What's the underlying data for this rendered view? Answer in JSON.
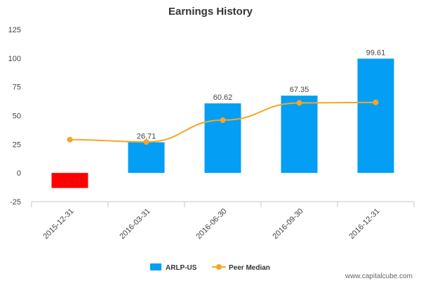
{
  "chart_data": {
    "type": "bar",
    "title": "Earnings History",
    "categories": [
      "2015-12-31",
      "2016-03-31",
      "2016-06-30",
      "2016-09-30",
      "2016-12-31"
    ],
    "series": [
      {
        "name": "ARLP-US",
        "kind": "bar",
        "values": [
          -13.13,
          26.71,
          60.62,
          67.35,
          99.61
        ],
        "labels": [
          "-13.13",
          "26.71",
          "60.62",
          "67.35",
          "99.61"
        ]
      },
      {
        "name": "Peer Median",
        "kind": "line",
        "values": [
          29,
          27,
          46,
          61,
          61.5
        ]
      }
    ],
    "ylim": [
      -25,
      125
    ],
    "yticks": [
      -25,
      0,
      25,
      50,
      75,
      100,
      125
    ],
    "xlabel": "",
    "ylabel": ""
  },
  "colors": {
    "bar": "#049ef4",
    "negative_bar": "#ff0000",
    "line": "#f6a623",
    "axis": "#c0c8d0"
  },
  "footer": "www.capitalcube.com"
}
